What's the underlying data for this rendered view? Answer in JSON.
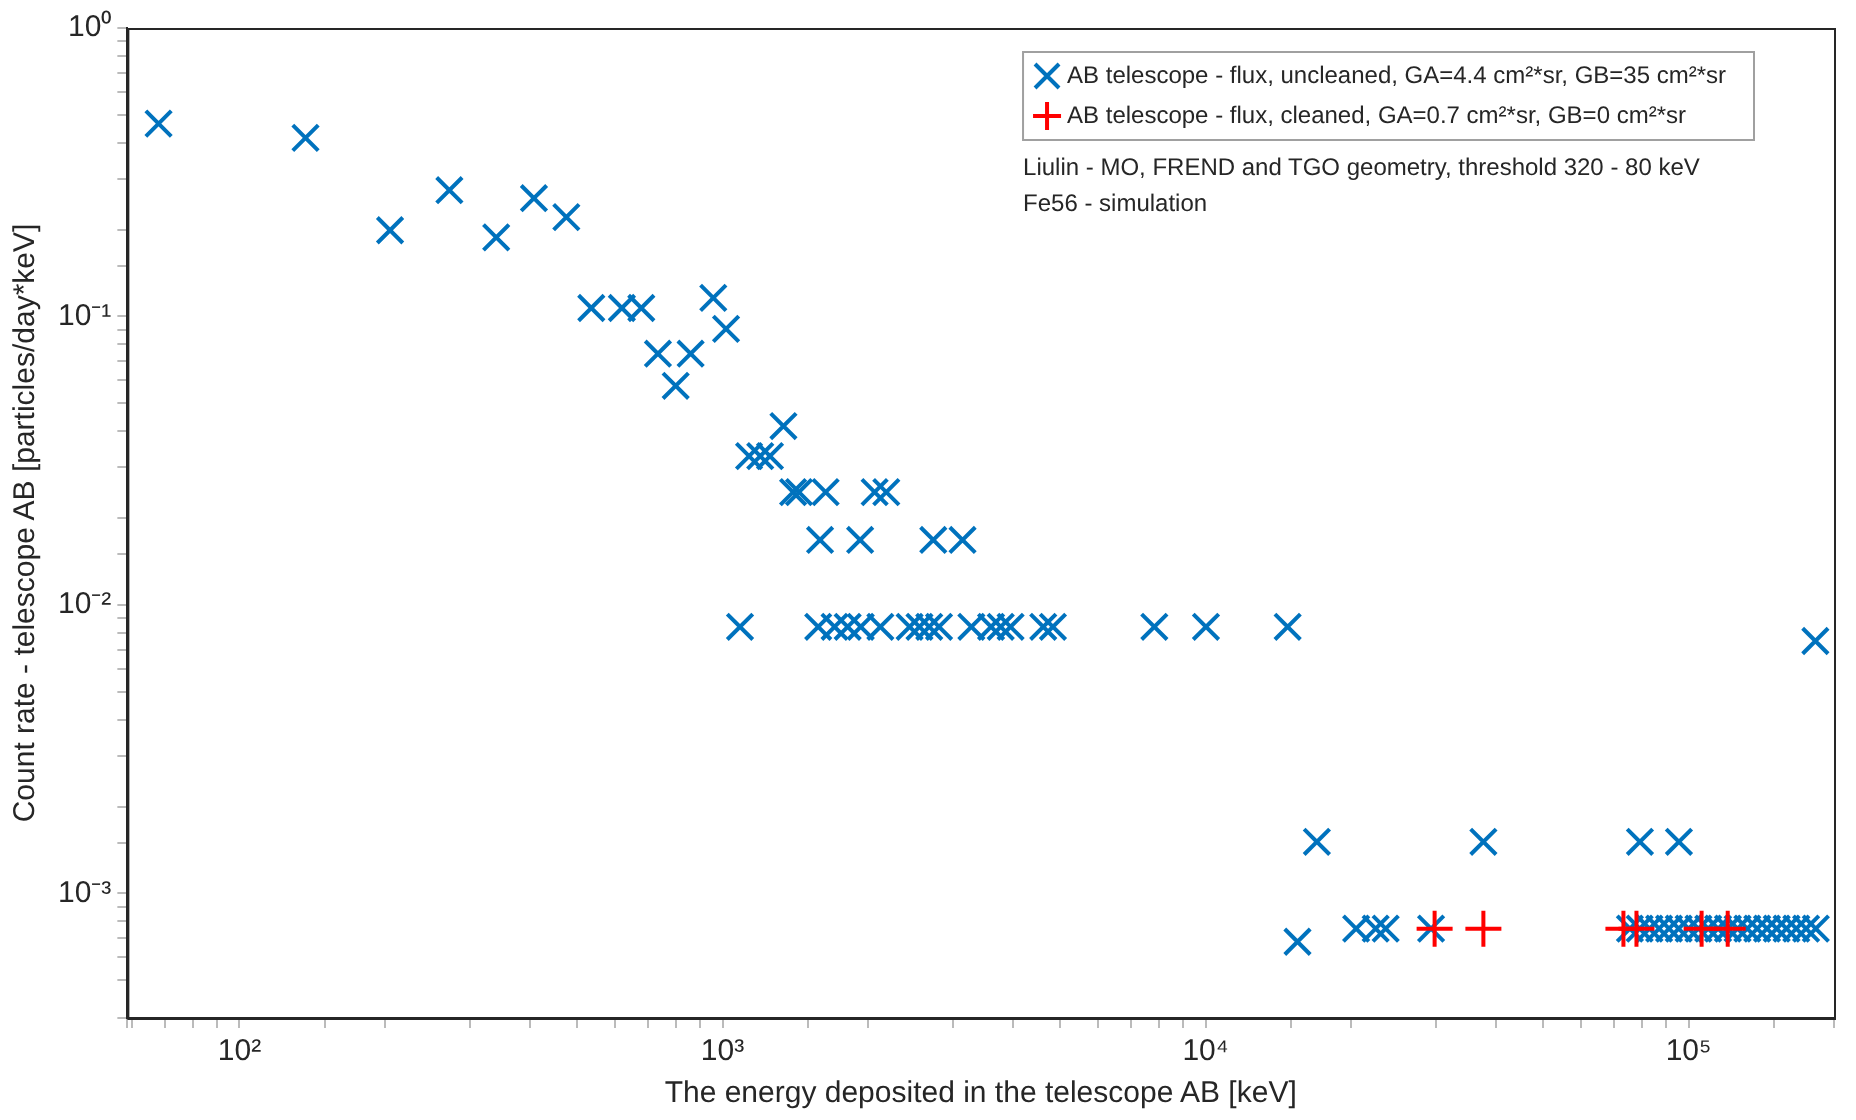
{
  "chart_data": {
    "type": "scatter",
    "xlabel": "The energy deposited in the telescope AB [keV]",
    "ylabel": "Count rate - telescope AB [particles/day*keV]",
    "log": "xy",
    "grid": false,
    "legend": "top right",
    "xlim": [
      58.6,
      200000
    ],
    "ylim": [
      0.00037,
      1
    ],
    "xticks": [
      {
        "value": 100,
        "label": "10²"
      },
      {
        "value": 1000,
        "label": "10³"
      },
      {
        "value": 10000,
        "label": "10⁴"
      },
      {
        "value": 100000,
        "label": "10⁵"
      }
    ],
    "yticks": [
      {
        "value": 0.001,
        "label": "10⁻³"
      },
      {
        "value": 0.01,
        "label": "10⁻²"
      },
      {
        "value": 0.1,
        "label": "10⁻¹"
      },
      {
        "value": 1,
        "label": "10⁰"
      }
    ],
    "annotations": [
      "Liulin - MO, FREND and TGO geometry, threshold 320 - 80 keV",
      "Fe56 - simulation"
    ],
    "series": [
      {
        "name": "AB telescope - flux, uncleaned, GA=4.4 cm²*sr, GB=35 cm²*sr",
        "color": "#0072bd",
        "marker": "cross",
        "x": [
          68,
          137,
          205,
          272,
          340,
          407,
          475,
          535,
          619,
          679,
          957,
          1017,
          735,
          859,
          800,
          1337,
          1135,
          1197,
          1254,
          1400,
          1440,
          1635,
          2065,
          2183,
          1592,
          1927,
          2731,
          3140,
          1087,
          1578,
          1706,
          1816,
          1933,
          2122,
          2440,
          2557,
          2679,
          2807,
          3275,
          3597,
          3767,
          3948,
          4613,
          4831,
          7834,
          10020,
          14790,
          183000,
          17000,
          37600,
          79300,
          95500,
          15500,
          20500,
          22500,
          23600,
          29300,
          75600,
          79200,
          83000,
          86900,
          91100,
          95400,
          100000,
          104800,
          109800,
          115100,
          120600,
          126300,
          132300,
          138700,
          145300,
          152200,
          159500,
          167100,
          175100,
          183400
        ],
        "values": [
          0.466,
          0.416,
          0.199,
          0.274,
          0.188,
          0.257,
          0.221,
          0.107,
          0.107,
          0.107,
          0.116,
          0.0906,
          0.0743,
          0.0743,
          0.0575,
          0.0417,
          0.0328,
          0.0328,
          0.0328,
          0.0246,
          0.0246,
          0.0246,
          0.0246,
          0.0246,
          0.0168,
          0.0168,
          0.0168,
          0.0168,
          0.0084,
          0.0084,
          0.0084,
          0.0084,
          0.0084,
          0.0084,
          0.0084,
          0.0084,
          0.0084,
          0.0084,
          0.0084,
          0.0084,
          0.0084,
          0.0084,
          0.0084,
          0.0084,
          0.0084,
          0.0084,
          0.0084,
          0.0075,
          0.00151,
          0.00151,
          0.00151,
          0.00151,
          0.00068,
          0.000755,
          0.000755,
          0.000755,
          0.000755,
          0.000755,
          0.000755,
          0.000755,
          0.000755,
          0.000755,
          0.000755,
          0.000755,
          0.000755,
          0.000755,
          0.000755,
          0.000755,
          0.000755,
          0.000755,
          0.000755,
          0.000755,
          0.000755,
          0.000755,
          0.000755,
          0.000755,
          0.000755
        ]
      },
      {
        "name": "AB telescope - flux, cleaned, GA=0.7 cm²*sr, GB=0 cm²*sr",
        "color": "#ff0000",
        "marker": "plus",
        "x": [
          29800,
          37600,
          73300,
          78000,
          106400,
          120500
        ],
        "values": [
          0.000755,
          0.000755,
          0.000755,
          0.000755,
          0.000755,
          0.000755
        ]
      }
    ]
  }
}
